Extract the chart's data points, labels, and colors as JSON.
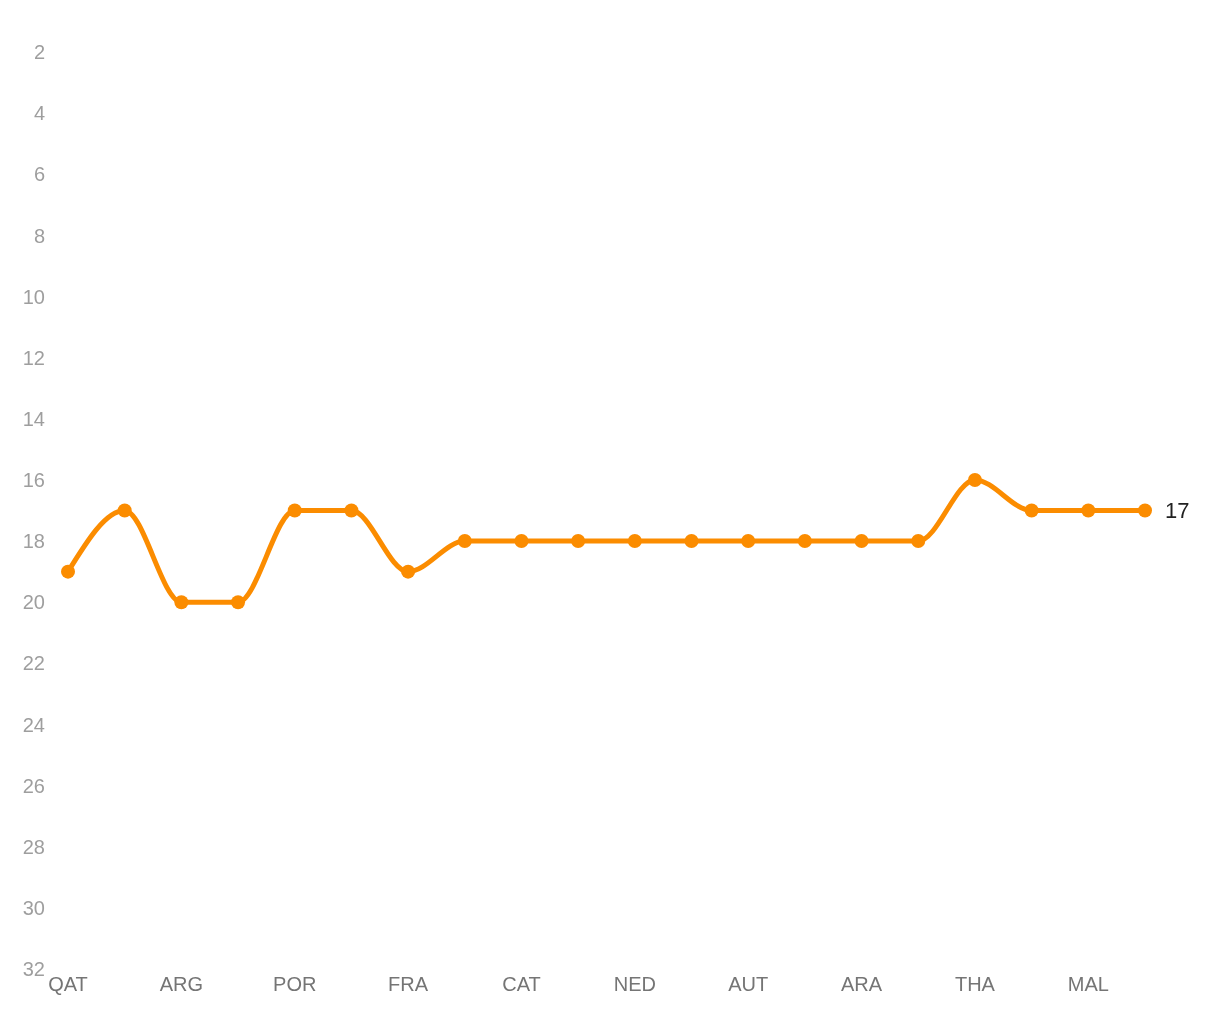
{
  "chart_data": {
    "type": "line",
    "categories": [
      "QAT",
      null,
      "ARG",
      null,
      "POR",
      null,
      "FRA",
      null,
      "CAT",
      null,
      "NED",
      null,
      "AUT",
      null,
      "ARA",
      null,
      "THA",
      null,
      "MAL",
      null
    ],
    "series": [
      {
        "color": "#fb8c00",
        "values": [
          19,
          17,
          20,
          20,
          17,
          17,
          19,
          18,
          18,
          18,
          18,
          18,
          18,
          18,
          18,
          18,
          16,
          17,
          17,
          17
        ],
        "value_labels": [
          null,
          null,
          null,
          null,
          null,
          null,
          null,
          null,
          null,
          null,
          null,
          null,
          null,
          null,
          null,
          null,
          null,
          null,
          null,
          "17"
        ]
      }
    ],
    "ylim": [
      32,
      2
    ],
    "yticks": [
      2,
      4,
      6,
      8,
      10,
      12,
      14,
      16,
      18,
      20,
      22,
      24,
      26,
      28,
      30,
      32
    ],
    "grid": false,
    "legend": false,
    "marker": "circle",
    "line_style": "solid"
  }
}
